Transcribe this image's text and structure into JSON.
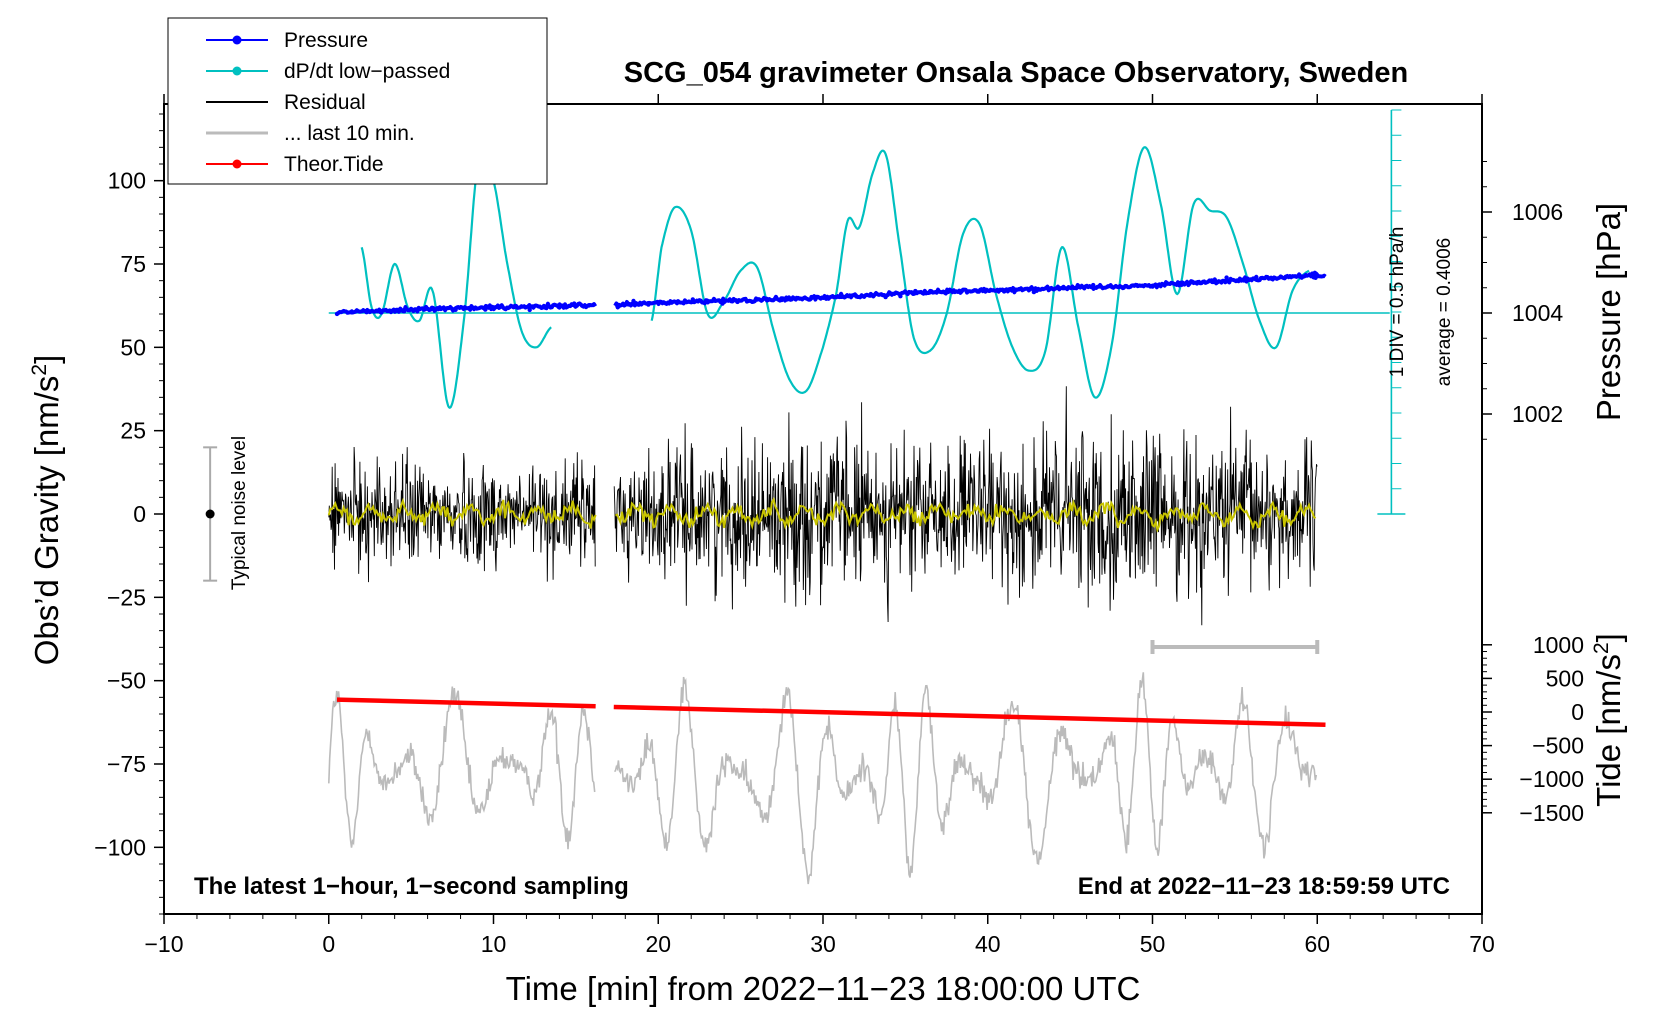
{
  "chart_data": {
    "type": "line",
    "title": "SCG_054 gravimeter Onsala Space Observatory, Sweden",
    "xlabel": "Time [min] from 2022−11−23 18:00:00 UTC",
    "ylabel_left": "Obs’d Gravity [nm/s",
    "ylabel_left_sup": "2",
    "ylabel_left_close": "]",
    "ylabel_right_pressure": "Pressure [hPa]",
    "ylabel_right_tide": "Tide [nm/s",
    "ylabel_right_tide_sup": "2",
    "ylabel_right_tide_close": "]",
    "xlim": [
      -10,
      70
    ],
    "ylim_gravity": [
      -120,
      120
    ],
    "pressure_axis": {
      "values": [
        1002,
        1004,
        1006
      ],
      "labels": [
        "1002",
        "1004",
        "1006"
      ],
      "ref": 1004
    },
    "tide_axis": {
      "values": [
        1000,
        500,
        0,
        -500,
        -1000,
        -1500
      ],
      "labels": [
        "1000",
        "500",
        "0",
        "−500",
        "−1000",
        "−1500"
      ]
    },
    "x_ticks": {
      "values": [
        -10,
        0,
        10,
        20,
        30,
        40,
        50,
        60,
        70
      ],
      "labels": [
        "−10",
        "0",
        "10",
        "20",
        "30",
        "40",
        "50",
        "60",
        "70"
      ]
    },
    "y_ticks": {
      "values": [
        100,
        75,
        50,
        25,
        0,
        -25,
        -50,
        -75,
        -100
      ],
      "labels": [
        "100",
        "75",
        "50",
        "25",
        "0",
        "−25",
        "−50",
        "−75",
        "−100"
      ]
    },
    "legend": [
      {
        "name": "Pressure",
        "color": "#0000ff",
        "marker": true
      },
      {
        "name": "dP/dt low−passed",
        "color": "#00c0c0",
        "marker": true
      },
      {
        "name": "Residual",
        "color": "#000000",
        "marker": false
      },
      {
        "name": "... last 10 min.",
        "color": "#bbbbbb",
        "marker": false
      },
      {
        "name": "Theor.Tide",
        "color": "#ff0000",
        "marker": true
      }
    ],
    "noise_label": "Typical noise level",
    "noise_level": [
      -20,
      20
    ],
    "dpdt_scale_label": "1 DIV = 0.5 hPa/h",
    "dpdt_average_label": "average = 0.4006",
    "note_left": "The latest 1−hour, 1−second sampling",
    "note_right": "End at 2022−11−23 18:59:59 UTC",
    "gap_minutes": [
      16.2,
      17.3
    ],
    "last10_bracket": [
      50,
      60
    ],
    "series": [
      {
        "name": "Pressure",
        "units": "hPa",
        "t": [
          0.5,
          3,
          6,
          9,
          12,
          16,
          17.5,
          20,
          25,
          30,
          35,
          40,
          45,
          50,
          55,
          60
        ],
        "values": [
          1004.0,
          1004.05,
          1004.08,
          1004.1,
          1004.12,
          1004.15,
          1004.15,
          1004.2,
          1004.25,
          1004.3,
          1004.4,
          1004.45,
          1004.5,
          1004.55,
          1004.65,
          1004.75
        ]
      },
      {
        "name": "dP/dt low-passed",
        "units": "gravity-axis units",
        "segments": [
          {
            "t": [
              2,
              2.6,
              3.2,
              4,
              4.8,
              5.5,
              6.3,
              7.3,
              8.2,
              9.1,
              10,
              10.8,
              11.7,
              12.6,
              13.5
            ],
            "values": [
              80,
              62,
              60,
              75,
              62,
              58,
              67,
              32,
              58,
              107,
              100,
              76,
              55,
              50,
              56
            ]
          },
          {
            "t": [
              19.6,
              20.2,
              21,
              22,
              23,
              24,
              25,
              26,
              27,
              28,
              29,
              30,
              30.8,
              31.5,
              32.2,
              33,
              33.8,
              34.6,
              35.5,
              36.5,
              37.5,
              38.5,
              39.5,
              40.5,
              41.5,
              42.5,
              43.5,
              44.5,
              45.5,
              46.5,
              47.5,
              48.5,
              49.5,
              50.5,
              51.5,
              52.5,
              53.5,
              54.5,
              55.5,
              56.5,
              57.5,
              58.5,
              59.5
            ],
            "values": [
              58,
              80,
              92,
              85,
              60,
              64,
              73,
              74,
              55,
              40,
              37,
              50,
              66,
              88,
              86,
              102,
              108,
              82,
              53,
              49,
              60,
              84,
              87,
              66,
              50,
              43,
              49,
              80,
              56,
              35,
              50,
              88,
              110,
              93,
              66,
              93,
              91,
              89,
              75,
              58,
              50,
              67,
              73
            ]
          }
        ]
      },
      {
        "name": "Residual",
        "units": "nm/s2",
        "envelope_t": [
          0,
          5,
          10,
          16,
          17.3,
          20,
          25,
          30,
          35,
          40,
          45,
          50,
          55,
          60
        ],
        "envelope_amp": [
          25,
          26,
          25,
          24,
          26,
          30,
          33,
          40,
          34,
          32,
          45,
          36,
          38,
          30
        ]
      },
      {
        "name": "... last 10 min.",
        "units": "nm/s2",
        "envelope_t": [
          0,
          10,
          16,
          17.3,
          25,
          30,
          40,
          50,
          60
        ],
        "envelope_center": [
          -78,
          -76,
          -76,
          -78,
          -80,
          -80,
          -78,
          -76,
          -76
        ],
        "envelope_amp": [
          24,
          22,
          20,
          24,
          30,
          30,
          28,
          26,
          22
        ]
      },
      {
        "name": "Theor.Tide",
        "units": "nm/s2 (tide axis)",
        "t": [
          0.5,
          16.2,
          17.3,
          60.5
        ],
        "values": [
          185,
          85,
          75,
          -190
        ]
      }
    ]
  }
}
